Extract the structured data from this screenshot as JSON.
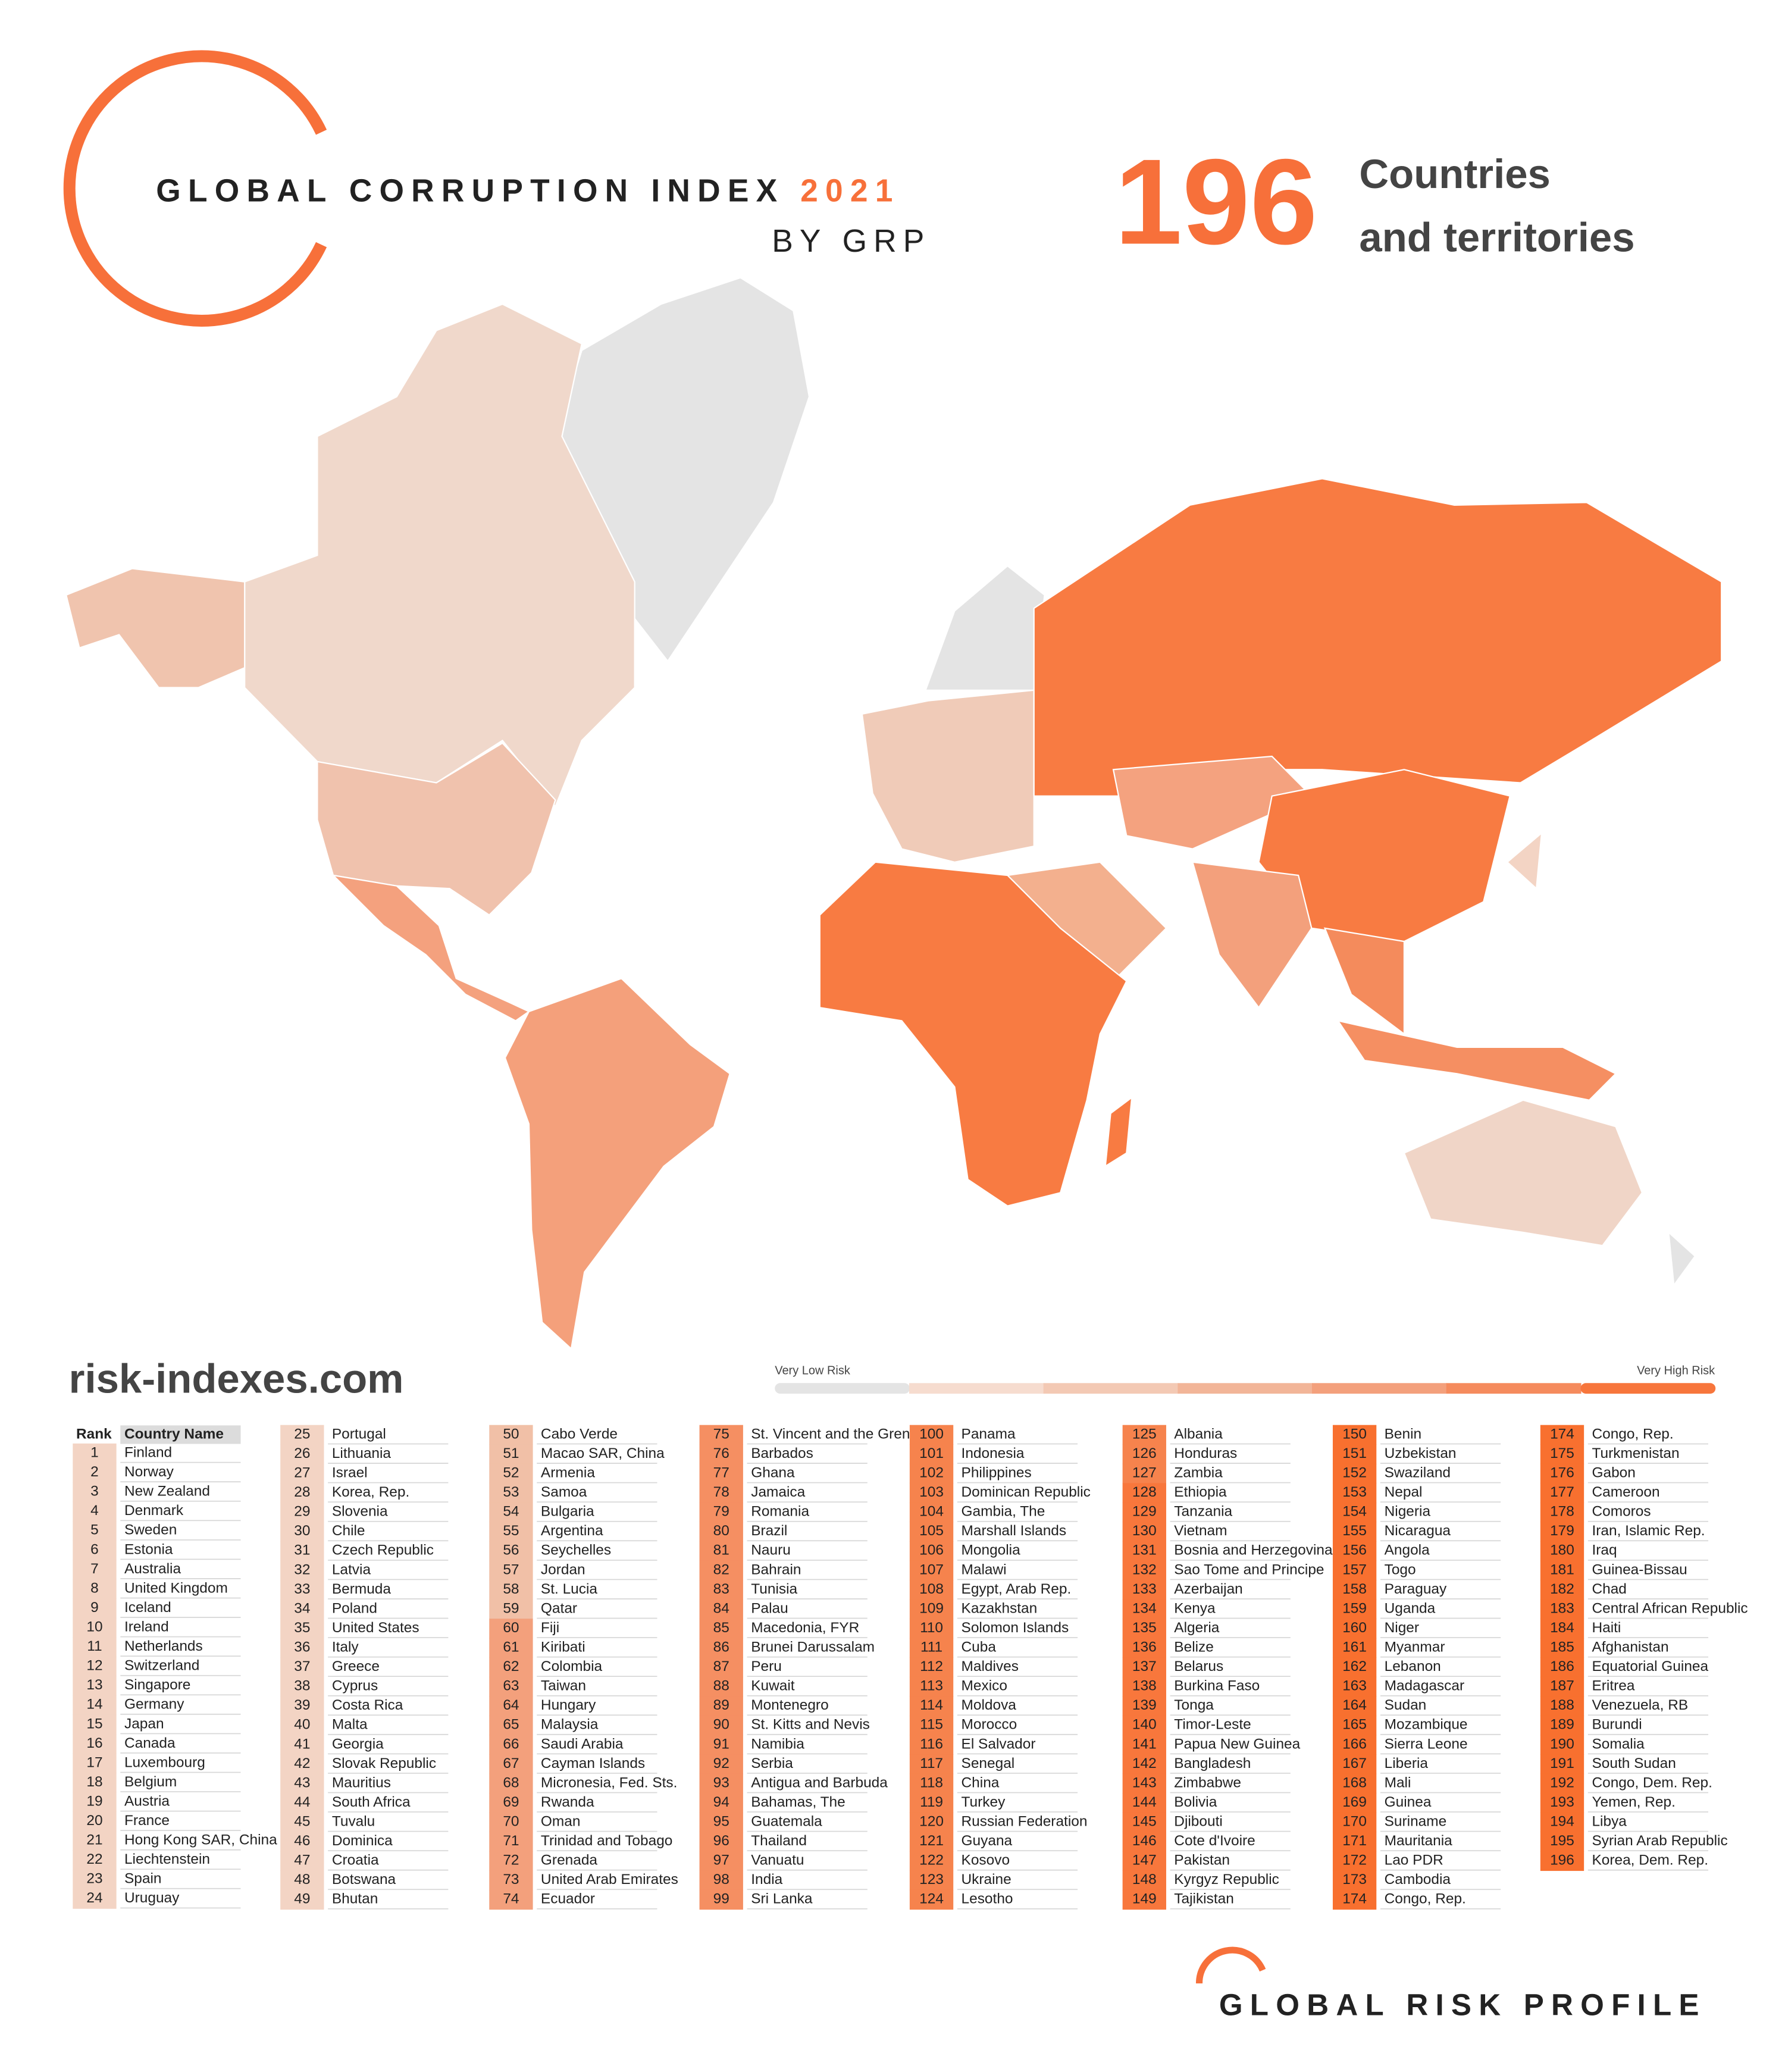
{
  "header": {
    "title": "GLOBAL CORRUPTION INDEX",
    "year": "2021",
    "subtitle": "BY GRP",
    "count": 196,
    "count_label_1": "Countries",
    "count_label_2": "and territories"
  },
  "website": "risk-indexes.com",
  "legend": {
    "low": "Very Low Risk",
    "high": "Very High Risk",
    "colors": [
      "#e4e4e4",
      "#f6dccf",
      "#f3c9b4",
      "#f2b598",
      "#f3a07c",
      "#f58b5d",
      "#f7763c"
    ]
  },
  "table": {
    "headers": [
      "Rank",
      "Country Name"
    ],
    "columns": [
      [
        [
          1,
          "Finland",
          "#f3d4c4"
        ],
        [
          2,
          "Norway",
          "#f3d4c4"
        ],
        [
          3,
          "New Zealand",
          "#f3d4c4"
        ],
        [
          4,
          "Denmark",
          "#f3d4c4"
        ],
        [
          5,
          "Sweden",
          "#f3d4c4"
        ],
        [
          6,
          "Estonia",
          "#f3d4c4"
        ],
        [
          7,
          "Australia",
          "#f3d4c4"
        ],
        [
          8,
          "United Kingdom",
          "#f3d4c4"
        ],
        [
          9,
          "Iceland",
          "#f3d4c4"
        ],
        [
          10,
          "Ireland",
          "#f3d4c4"
        ],
        [
          11,
          "Netherlands",
          "#f3d4c4"
        ],
        [
          12,
          "Switzerland",
          "#f3d4c4"
        ],
        [
          13,
          "Singapore",
          "#f3d4c4"
        ],
        [
          14,
          "Germany",
          "#f3d4c4"
        ],
        [
          15,
          "Japan",
          "#f3d4c4"
        ],
        [
          16,
          "Canada",
          "#f3d4c4"
        ],
        [
          17,
          "Luxembourg",
          "#f3d4c4"
        ],
        [
          18,
          "Belgium",
          "#f3d4c4"
        ],
        [
          19,
          "Austria",
          "#f3d4c4"
        ],
        [
          20,
          "France",
          "#f3d4c4"
        ],
        [
          21,
          "Hong Kong SAR, China",
          "#f3d4c4"
        ],
        [
          22,
          "Liechtenstein",
          "#f3d4c4"
        ],
        [
          23,
          "Spain",
          "#f3d4c4"
        ],
        [
          24,
          "Uruguay",
          "#f3d4c4"
        ]
      ],
      [
        [
          25,
          "Portugal",
          "#f3d4c4"
        ],
        [
          26,
          "Lithuania",
          "#f3d4c4"
        ],
        [
          27,
          "Israel",
          "#f3d4c4"
        ],
        [
          28,
          "Korea, Rep.",
          "#f3d4c4"
        ],
        [
          29,
          "Slovenia",
          "#f3d4c4"
        ],
        [
          30,
          "Chile",
          "#f3d4c4"
        ],
        [
          31,
          "Czech Republic",
          "#f3d4c4"
        ],
        [
          32,
          "Latvia",
          "#f3d4c4"
        ],
        [
          33,
          "Bermuda",
          "#f3d4c4"
        ],
        [
          34,
          "Poland",
          "#f3d4c4"
        ],
        [
          35,
          "United States",
          "#f3d4c4"
        ],
        [
          36,
          "Italy",
          "#f3d4c4"
        ],
        [
          37,
          "Greece",
          "#f3d4c4"
        ],
        [
          38,
          "Cyprus",
          "#f3d4c4"
        ],
        [
          39,
          "Costa Rica",
          "#f3d4c4"
        ],
        [
          40,
          "Malta",
          "#f3d4c4"
        ],
        [
          41,
          "Georgia",
          "#f3d4c4"
        ],
        [
          42,
          "Slovak Republic",
          "#f3d4c4"
        ],
        [
          43,
          "Mauritius",
          "#f3d4c4"
        ],
        [
          44,
          "South Africa",
          "#f3d4c4"
        ],
        [
          45,
          "Tuvalu",
          "#f3d4c4"
        ],
        [
          46,
          "Dominica",
          "#f3d4c4"
        ],
        [
          47,
          "Croatia",
          "#f3d4c4"
        ],
        [
          48,
          "Botswana",
          "#f3d4c4"
        ],
        [
          49,
          "Bhutan",
          "#f3d4c4"
        ]
      ],
      [
        [
          50,
          "Cabo Verde",
          "#f1c0a7"
        ],
        [
          51,
          "Macao SAR, China",
          "#f1c0a7"
        ],
        [
          52,
          "Armenia",
          "#f1c0a7"
        ],
        [
          53,
          "Samoa",
          "#f1c0a7"
        ],
        [
          54,
          "Bulgaria",
          "#f1c0a7"
        ],
        [
          55,
          "Argentina",
          "#f1c0a7"
        ],
        [
          56,
          "Seychelles",
          "#f1c0a7"
        ],
        [
          57,
          "Jordan",
          "#f1c0a7"
        ],
        [
          58,
          "St. Lucia",
          "#f1c0a7"
        ],
        [
          59,
          "Qatar",
          "#f1c0a7"
        ],
        [
          60,
          "Fiji",
          "#f3a07c"
        ],
        [
          61,
          "Kiribati",
          "#f3a07c"
        ],
        [
          62,
          "Colombia",
          "#f3a07c"
        ],
        [
          63,
          "Taiwan",
          "#f3a07c"
        ],
        [
          64,
          "Hungary",
          "#f3a07c"
        ],
        [
          65,
          "Malaysia",
          "#f3a07c"
        ],
        [
          66,
          "Saudi Arabia",
          "#f3a07c"
        ],
        [
          67,
          "Cayman Islands",
          "#f3a07c"
        ],
        [
          68,
          "Micronesia, Fed. Sts.",
          "#f3a07c"
        ],
        [
          69,
          "Rwanda",
          "#f3a07c"
        ],
        [
          70,
          "Oman",
          "#f3a07c"
        ],
        [
          71,
          "Trinidad and Tobago",
          "#f3a07c"
        ],
        [
          72,
          "Grenada",
          "#f3a07c"
        ],
        [
          73,
          "United Arab Emirates",
          "#f3a07c"
        ],
        [
          74,
          "Ecuador",
          "#f3a07c"
        ]
      ],
      [
        [
          75,
          "St. Vincent and the Grenadines",
          "#f58f62"
        ],
        [
          76,
          "Barbados",
          "#f58f62"
        ],
        [
          77,
          "Ghana",
          "#f58f62"
        ],
        [
          78,
          "Jamaica",
          "#f58f62"
        ],
        [
          79,
          "Romania",
          "#f58f62"
        ],
        [
          80,
          "Brazil",
          "#f58f62"
        ],
        [
          81,
          "Nauru",
          "#f58f62"
        ],
        [
          82,
          "Bahrain",
          "#f58f62"
        ],
        [
          83,
          "Tunisia",
          "#f58f62"
        ],
        [
          84,
          "Palau",
          "#f58f62"
        ],
        [
          85,
          "Macedonia, FYR",
          "#f58f62"
        ],
        [
          86,
          "Brunei Darussalam",
          "#f58f62"
        ],
        [
          87,
          "Peru",
          "#f58f62"
        ],
        [
          88,
          "Kuwait",
          "#f58f62"
        ],
        [
          89,
          "Montenegro",
          "#f58f62"
        ],
        [
          90,
          "St. Kitts and Nevis",
          "#f58f62"
        ],
        [
          91,
          "Namibia",
          "#f58f62"
        ],
        [
          92,
          "Serbia",
          "#f58f62"
        ],
        [
          93,
          "Antigua and Barbuda",
          "#f58f62"
        ],
        [
          94,
          "Bahamas, The",
          "#f58f62"
        ],
        [
          95,
          "Guatemala",
          "#f58f62"
        ],
        [
          96,
          "Thailand",
          "#f58f62"
        ],
        [
          97,
          "Vanuatu",
          "#f58f62"
        ],
        [
          98,
          "India",
          "#f58f62"
        ],
        [
          99,
          "Sri Lanka",
          "#f58f62"
        ]
      ],
      [
        [
          100,
          "Panama",
          "#f6834d"
        ],
        [
          101,
          "Indonesia",
          "#f6834d"
        ],
        [
          102,
          "Philippines",
          "#f6834d"
        ],
        [
          103,
          "Dominican Republic",
          "#f6834d"
        ],
        [
          104,
          "Gambia, The",
          "#f6834d"
        ],
        [
          105,
          "Marshall Islands",
          "#f6834d"
        ],
        [
          106,
          "Mongolia",
          "#f6834d"
        ],
        [
          107,
          "Malawi",
          "#f6834d"
        ],
        [
          108,
          "Egypt, Arab Rep.",
          "#f6834d"
        ],
        [
          109,
          "Kazakhstan",
          "#f6834d"
        ],
        [
          110,
          "Solomon Islands",
          "#f6834d"
        ],
        [
          111,
          "Cuba",
          "#f6834d"
        ],
        [
          112,
          "Maldives",
          "#f6834d"
        ],
        [
          113,
          "Mexico",
          "#f6834d"
        ],
        [
          114,
          "Moldova",
          "#f6834d"
        ],
        [
          115,
          "Morocco",
          "#f6834d"
        ],
        [
          116,
          "El Salvador",
          "#f6834d"
        ],
        [
          117,
          "Senegal",
          "#f6834d"
        ],
        [
          118,
          "China",
          "#f6834d"
        ],
        [
          119,
          "Turkey",
          "#f6834d"
        ],
        [
          120,
          "Russian Federation",
          "#f6834d"
        ],
        [
          121,
          "Guyana",
          "#f6834d"
        ],
        [
          122,
          "Kosovo",
          "#f6834d"
        ],
        [
          123,
          "Ukraine",
          "#f6834d"
        ],
        [
          124,
          "Lesotho",
          "#f6834d"
        ]
      ],
      [
        [
          125,
          "Albania",
          "#f6834d"
        ],
        [
          126,
          "Honduras",
          "#f6834d"
        ],
        [
          127,
          "Zambia",
          "#f6834d"
        ],
        [
          128,
          "Ethiopia",
          "#f8773c"
        ],
        [
          129,
          "Tanzania",
          "#f8773c"
        ],
        [
          130,
          "Vietnam",
          "#f8773c"
        ],
        [
          131,
          "Bosnia and Herzegovina",
          "#f8773c"
        ],
        [
          132,
          "Sao Tome and Principe",
          "#f8773c"
        ],
        [
          133,
          "Azerbaijan",
          "#f8773c"
        ],
        [
          134,
          "Kenya",
          "#f8773c"
        ],
        [
          135,
          "Algeria",
          "#f8773c"
        ],
        [
          136,
          "Belize",
          "#f8773c"
        ],
        [
          137,
          "Belarus",
          "#f8773c"
        ],
        [
          138,
          "Burkina Faso",
          "#f8773c"
        ],
        [
          139,
          "Tonga",
          "#f8773c"
        ],
        [
          140,
          "Timor-Leste",
          "#f8773c"
        ],
        [
          141,
          "Papua New Guinea",
          "#f8773c"
        ],
        [
          142,
          "Bangladesh",
          "#f8773c"
        ],
        [
          143,
          "Zimbabwe",
          "#f8773c"
        ],
        [
          144,
          "Bolivia",
          "#f8773c"
        ],
        [
          145,
          "Djibouti",
          "#f8773c"
        ],
        [
          146,
          "Cote d'Ivoire",
          "#f8773c"
        ],
        [
          147,
          "Pakistan",
          "#f8773c"
        ],
        [
          148,
          "Kyrgyz Republic",
          "#f8773c"
        ],
        [
          149,
          "Tajikistan",
          "#f8773c"
        ]
      ],
      [
        [
          150,
          "Benin",
          "#f8702f"
        ],
        [
          151,
          "Uzbekistan",
          "#f8702f"
        ],
        [
          152,
          "Swaziland",
          "#f8702f"
        ],
        [
          153,
          "Nepal",
          "#f8702f"
        ],
        [
          154,
          "Nigeria",
          "#f8702f"
        ],
        [
          155,
          "Nicaragua",
          "#f8702f"
        ],
        [
          156,
          "Angola",
          "#f8702f"
        ],
        [
          157,
          "Togo",
          "#f8702f"
        ],
        [
          158,
          "Paraguay",
          "#f8702f"
        ],
        [
          159,
          "Uganda",
          "#f8702f"
        ],
        [
          160,
          "Niger",
          "#f8702f"
        ],
        [
          161,
          "Myanmar",
          "#f8702f"
        ],
        [
          162,
          "Lebanon",
          "#f8702f"
        ],
        [
          163,
          "Madagascar",
          "#f8702f"
        ],
        [
          164,
          "Sudan",
          "#f8702f"
        ],
        [
          165,
          "Mozambique",
          "#f8702f"
        ],
        [
          166,
          "Sierra Leone",
          "#f8702f"
        ],
        [
          167,
          "Liberia",
          "#f8702f"
        ],
        [
          168,
          "Mali",
          "#f8702f"
        ],
        [
          169,
          "Guinea",
          "#f8702f"
        ],
        [
          170,
          "Suriname",
          "#f8702f"
        ],
        [
          171,
          "Mauritania",
          "#f8702f"
        ],
        [
          172,
          "Lao PDR",
          "#f8702f"
        ],
        [
          173,
          "Cambodia",
          "#f8702f"
        ],
        [
          174,
          "Congo, Rep.",
          "#f8702f"
        ]
      ],
      [
        [
          174,
          "Congo, Rep.",
          "#f8702f"
        ],
        [
          175,
          "Turkmenistan",
          "#f8702f"
        ],
        [
          176,
          "Gabon",
          "#f8702f"
        ],
        [
          177,
          "Cameroon",
          "#f8702f"
        ],
        [
          178,
          "Comoros",
          "#f8702f"
        ],
        [
          179,
          "Iran, Islamic Rep.",
          "#f8702f"
        ],
        [
          180,
          "Iraq",
          "#f8702f"
        ],
        [
          181,
          "Guinea-Bissau",
          "#f8702f"
        ],
        [
          182,
          "Chad",
          "#f8702f"
        ],
        [
          183,
          "Central African Republic",
          "#f8702f"
        ],
        [
          184,
          "Haiti",
          "#f8702f"
        ],
        [
          185,
          "Afghanistan",
          "#f8702f"
        ],
        [
          186,
          "Equatorial Guinea",
          "#f8702f"
        ],
        [
          187,
          "Eritrea",
          "#f8702f"
        ],
        [
          188,
          "Venezuela, RB",
          "#f8702f"
        ],
        [
          189,
          "Burundi",
          "#f8702f"
        ],
        [
          190,
          "Somalia",
          "#f8702f"
        ],
        [
          191,
          "South Sudan",
          "#f8702f"
        ],
        [
          192,
          "Congo, Dem. Rep.",
          "#f8702f"
        ],
        [
          193,
          "Yemen, Rep.",
          "#f8702f"
        ],
        [
          194,
          "Libya",
          "#f8702f"
        ],
        [
          195,
          "Syrian Arab Republic",
          "#f8702f"
        ],
        [
          196,
          "Korea, Dem. Rep.",
          "#f8702f"
        ]
      ]
    ]
  },
  "footer": "GLOBAL RISK PROFILE"
}
